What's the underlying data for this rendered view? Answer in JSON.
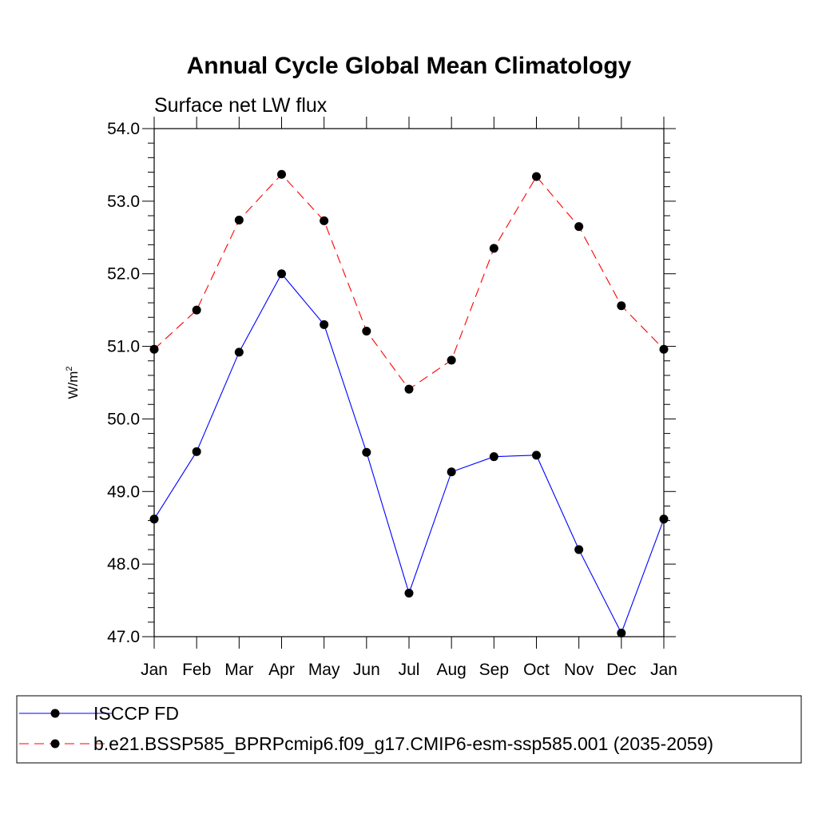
{
  "chart_data": {
    "type": "line",
    "title": "Annual Cycle Global Mean Climatology",
    "subtitle": "Surface net LW flux",
    "ylabel_base": "W/m",
    "ylabel_sup": "2",
    "xlabel": "",
    "categories": [
      "Jan",
      "Feb",
      "Mar",
      "Apr",
      "May",
      "Jun",
      "Jul",
      "Aug",
      "Sep",
      "Oct",
      "Nov",
      "Dec",
      "Jan"
    ],
    "ylim": [
      47.0,
      54.0
    ],
    "yticks": [
      "47.0",
      "48.0",
      "49.0",
      "50.0",
      "51.0",
      "52.0",
      "53.0",
      "54.0"
    ],
    "grid": false,
    "legend_position": "bottom",
    "series": [
      {
        "name": "ISCCP FD",
        "color": "#0000ff",
        "dash": "solid",
        "values": [
          48.62,
          49.55,
          50.92,
          52.0,
          51.3,
          49.54,
          47.6,
          49.27,
          49.48,
          49.5,
          48.2,
          47.05,
          48.62
        ]
      },
      {
        "name": "b.e21.BSSP585_BPRPcmip6.f09_g17.CMIP6-esm-ssp585.001 (2035-2059)",
        "color": "#ff0000",
        "dash": "dashed",
        "values": [
          50.96,
          51.5,
          52.74,
          53.37,
          52.73,
          51.21,
          50.41,
          50.81,
          52.35,
          53.34,
          52.65,
          51.56,
          50.96
        ]
      }
    ]
  }
}
